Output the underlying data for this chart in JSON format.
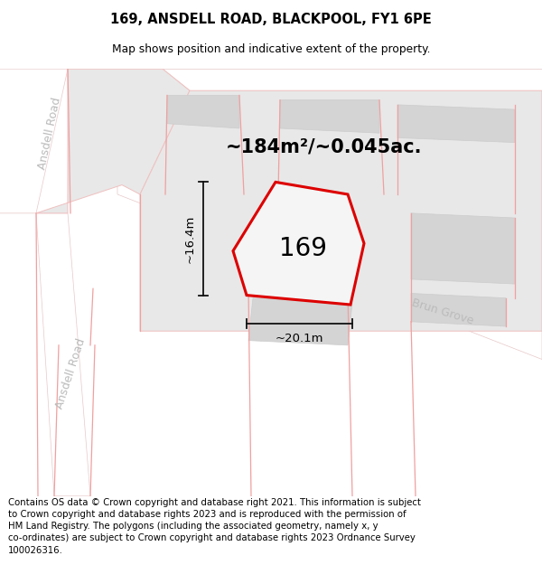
{
  "title": "169, ANSDELL ROAD, BLACKPOOL, FY1 6PE",
  "subtitle": "Map shows position and indicative extent of the property.",
  "area_text": "~184m²/~0.045ac.",
  "width_label": "~20.1m",
  "height_label": "~16.4m",
  "property_number": "169",
  "footer_text": "Contains OS data © Crown copyright and database right 2021. This information is subject to Crown copyright and database rights 2023 and is reproduced with the permission of HM Land Registry. The polygons (including the associated geometry, namely x, y co-ordinates) are subject to Crown copyright and database rights 2023 Ordnance Survey 100026316.",
  "map_bg": "#f5f5f5",
  "road_color": "#ffffff",
  "road_edge": "#e8c8c8",
  "plot_color": "#e8e8e8",
  "plot_edge": "#f0c0c0",
  "building_color": "#d4d4d4",
  "building_edge": "#cccccc",
  "street_label_color": "#bbbbbb",
  "property_edge": "#dd0000",
  "property_fill": "#f5f5f5",
  "dim_color": "#111111",
  "title_fontsize": 10.5,
  "subtitle_fontsize": 8.8,
  "area_fontsize": 15,
  "number_fontsize": 20,
  "dim_fontsize": 9.5,
  "footer_fontsize": 7.3,
  "street_fontsize": 9
}
